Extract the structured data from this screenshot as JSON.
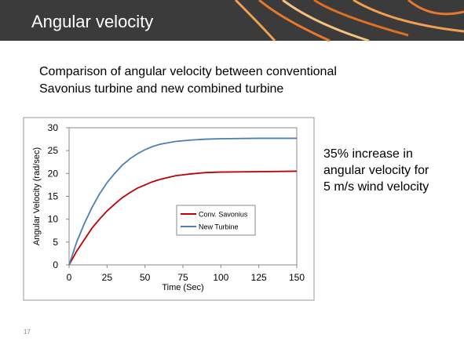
{
  "header": {
    "title": "Angular velocity"
  },
  "intro": [
    "Comparison of angular velocity between conventional",
    "Savonius turbine and new combined turbine"
  ],
  "note": [
    "35% increase in",
    "angular velocity for",
    "5 m/s wind velocity"
  ],
  "page_number": "17",
  "chart_data": {
    "type": "line",
    "xlabel": "Time (Sec)",
    "ylabel": "Angular Velocity (rad/sec)",
    "x": [
      0,
      5,
      10,
      15,
      20,
      25,
      30,
      35,
      40,
      45,
      50,
      55,
      60,
      70,
      80,
      90,
      100,
      125,
      150
    ],
    "series": [
      {
        "name": "Conv. Savonius",
        "color": "#c00000",
        "values": [
          0,
          3,
          5.5,
          8,
          10,
          11.8,
          13.3,
          14.7,
          15.8,
          16.8,
          17.5,
          18.2,
          18.7,
          19.5,
          19.9,
          20.2,
          20.3,
          20.4,
          20.5
        ]
      },
      {
        "name": "New Turbine",
        "color": "#4a7ebb",
        "values": [
          0,
          5,
          9,
          12.5,
          15.5,
          18,
          20,
          21.8,
          23.2,
          24.3,
          25.2,
          25.9,
          26.4,
          27,
          27.3,
          27.5,
          27.6,
          27.7,
          27.7
        ]
      }
    ],
    "xlim": [
      0,
      150
    ],
    "xticks": [
      0,
      25,
      50,
      75,
      100,
      125,
      150
    ],
    "ylim": [
      0,
      30
    ],
    "yticks": [
      0,
      5,
      10,
      15,
      20,
      25,
      30
    ]
  }
}
